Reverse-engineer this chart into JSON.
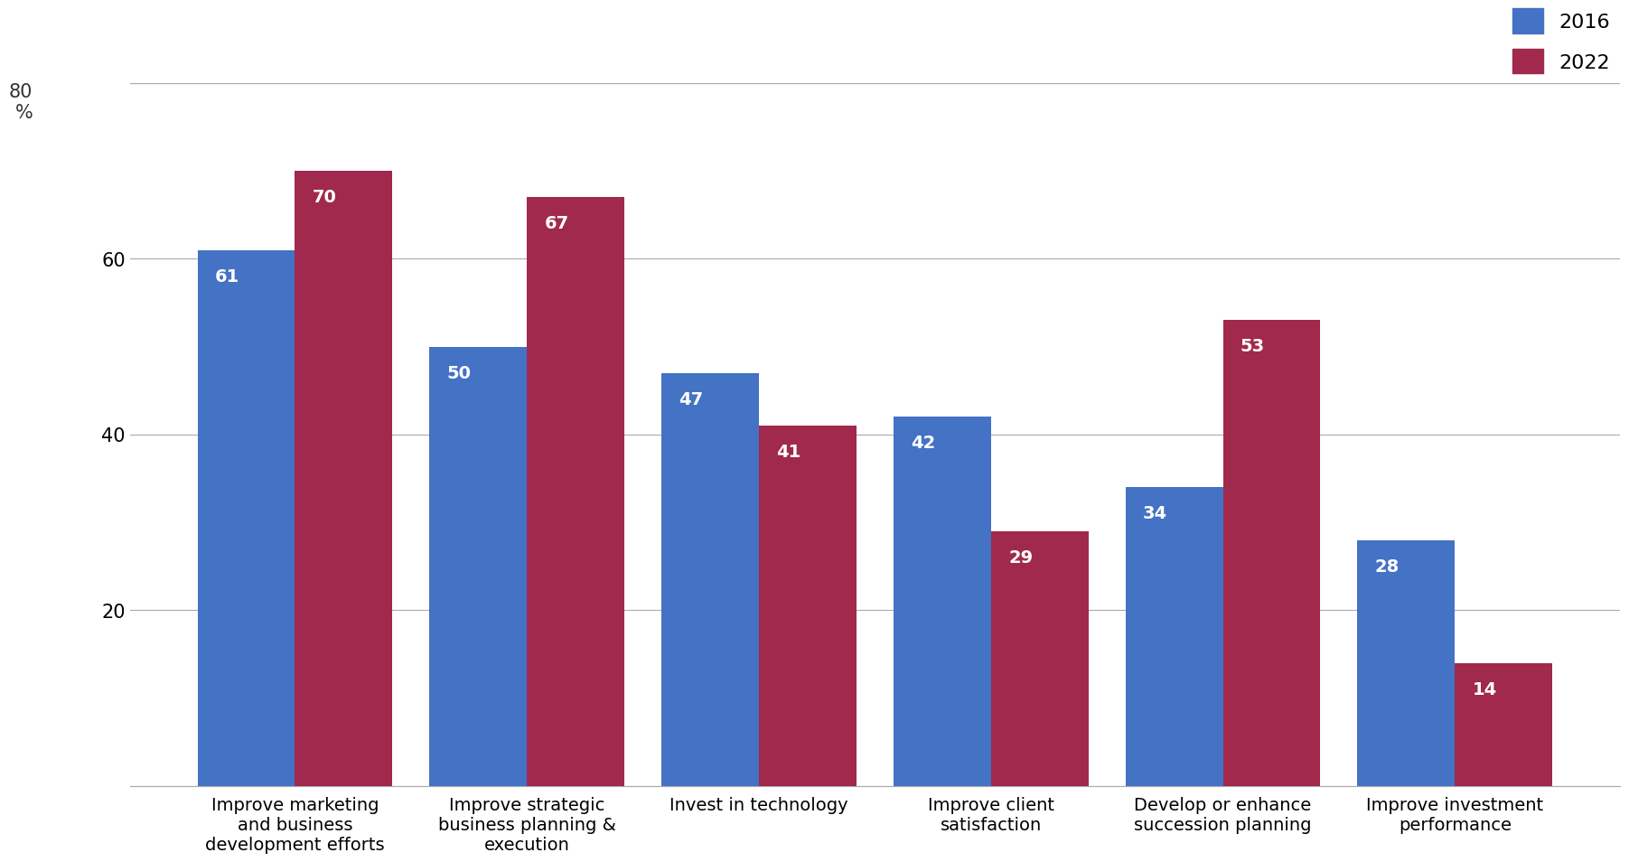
{
  "categories": [
    "Improve marketing\nand business\ndevelopment efforts",
    "Improve strategic\nbusiness planning &\nexecution",
    "Invest in technology",
    "Improve client\nsatisfaction",
    "Develop or enhance\nsuccession planning",
    "Improve investment\nperformance"
  ],
  "values_2016": [
    61,
    50,
    47,
    42,
    34,
    28
  ],
  "values_2022": [
    70,
    67,
    41,
    29,
    53,
    14
  ],
  "color_2016": "#4472C4",
  "color_2022": "#A0294D",
  "bar_width": 0.42,
  "ylim": [
    0,
    80
  ],
  "yticks": [
    0,
    20,
    40,
    60,
    80
  ],
  "legend_labels": [
    "2016",
    "2022"
  ],
  "background_color": "#FFFFFF",
  "grid_color": "#AAAAAA",
  "label_fontsize": 14,
  "tick_fontsize": 15,
  "legend_fontsize": 16,
  "value_fontsize": 14
}
